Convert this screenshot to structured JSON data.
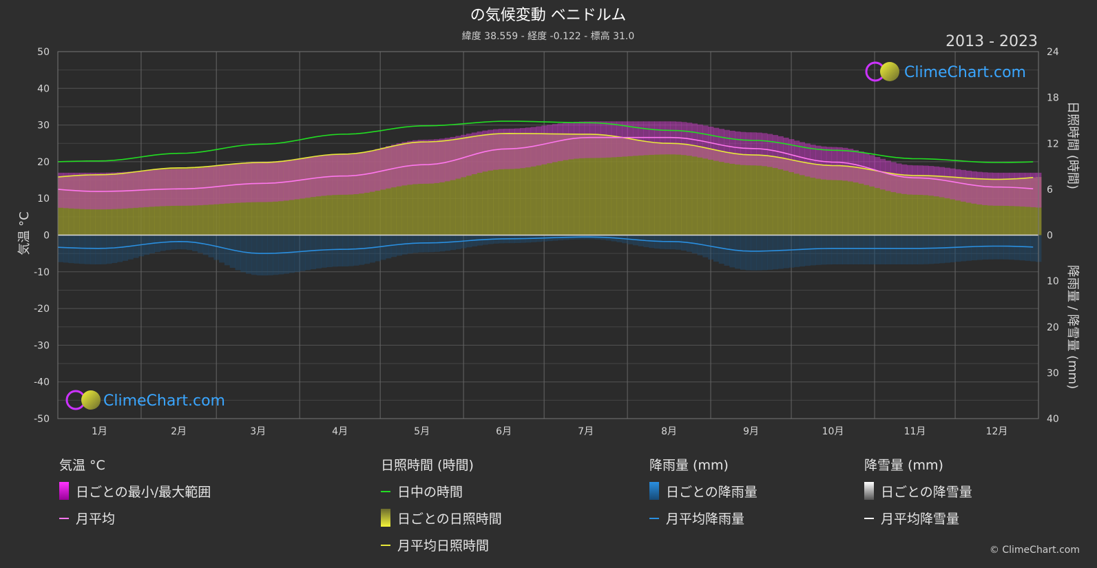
{
  "header": {
    "title": "の気候変動 ベニドルム",
    "subtitle": "緯度 38.559 - 経度 -0.122 - 標高 31.0",
    "years": "2013 - 2023"
  },
  "logo": {
    "text": "ClimeChart.com"
  },
  "copyright": "© ClimeChart.com",
  "chart_data": {
    "type": "line",
    "categories": [
      "1月",
      "2月",
      "3月",
      "4月",
      "5月",
      "6月",
      "7月",
      "8月",
      "9月",
      "10月",
      "11月",
      "12月"
    ],
    "left_axis": {
      "label": "気温 °C",
      "range": [
        -50,
        50
      ],
      "ticks": [
        50,
        40,
        30,
        20,
        10,
        0,
        -10,
        -20,
        -30,
        -40,
        -50
      ]
    },
    "right_axis_top": {
      "label": "日照時間 (時間)",
      "range": [
        0,
        24
      ],
      "ticks": [
        24,
        18,
        12,
        6,
        0
      ]
    },
    "right_axis_bottom": {
      "label": "降雨量 / 降雪量 (mm)",
      "range": [
        0,
        40
      ],
      "ticks": [
        0,
        10,
        20,
        30,
        40
      ]
    },
    "series": [
      {
        "name": "日中の時間",
        "unit": "hours",
        "color": "#22dd22",
        "values": [
          9.7,
          10.7,
          11.9,
          13.2,
          14.3,
          14.9,
          14.7,
          13.7,
          12.4,
          11.1,
          10.0,
          9.5
        ]
      },
      {
        "name": "月平均日照時間",
        "unit": "hours",
        "color": "#e8e83a",
        "values": [
          7.9,
          8.8,
          9.5,
          10.6,
          12.2,
          13.3,
          13.2,
          12.0,
          10.5,
          9.1,
          7.8,
          7.3
        ]
      },
      {
        "name": "月平均",
        "unit": "°C",
        "color": "#ff77ee",
        "values": [
          11.9,
          12.6,
          14.1,
          16.1,
          19.2,
          23.5,
          26.6,
          26.6,
          23.6,
          19.9,
          15.6,
          13.1
        ]
      },
      {
        "name": "月平均降雨量",
        "unit": "mm",
        "color": "#2a8fe0",
        "values": [
          2.9,
          1.4,
          4.0,
          3.1,
          1.7,
          0.8,
          0.4,
          1.4,
          3.5,
          2.9,
          2.9,
          2.4
        ]
      },
      {
        "name": "日ごとの最小/最大範囲",
        "unit": "°C",
        "min": [
          7,
          8,
          9,
          11,
          14,
          18,
          21,
          22,
          19,
          15,
          11,
          8
        ],
        "max": [
          17,
          18,
          20,
          22,
          26,
          29,
          31,
          31,
          28,
          24,
          19,
          17
        ]
      }
    ]
  },
  "legend": {
    "groups": [
      {
        "title": "気温 °C",
        "items": [
          {
            "label": "日ごとの最小/最大範囲",
            "swatch": "magenta-bar"
          },
          {
            "label": "月平均",
            "swatch": "pink-line"
          }
        ]
      },
      {
        "title": "日照時間 (時間)",
        "items": [
          {
            "label": "日中の時間",
            "swatch": "green-line"
          },
          {
            "label": "日ごとの日照時間",
            "swatch": "yellow-bar"
          },
          {
            "label": "月平均日照時間",
            "swatch": "yellow-line"
          }
        ]
      },
      {
        "title": "降雨量 (mm)",
        "items": [
          {
            "label": "日ごとの降雨量",
            "swatch": "blue-bar"
          },
          {
            "label": "月平均降雨量",
            "swatch": "blue-line"
          }
        ]
      },
      {
        "title": "降雪量 (mm)",
        "items": [
          {
            "label": "日ごとの降雪量",
            "swatch": "white-bar"
          },
          {
            "label": "月平均降雪量",
            "swatch": "white-line"
          }
        ]
      }
    ]
  }
}
